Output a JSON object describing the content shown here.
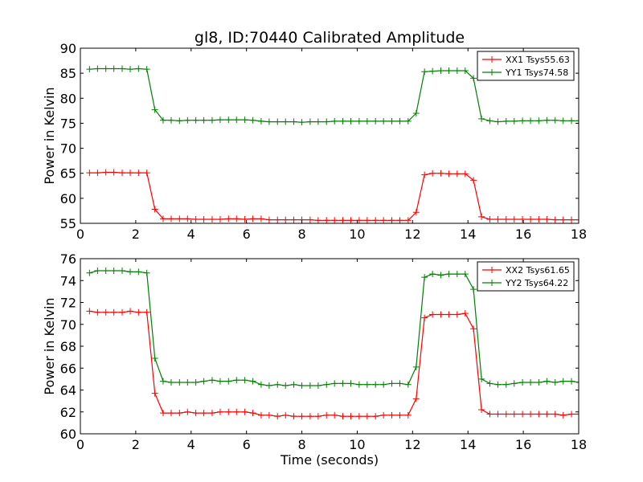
{
  "title": "gl8, ID:70440 Calibrated Amplitude",
  "colors": {
    "XX": "#ff0000",
    "YY": "#008000"
  },
  "chart_data": [
    {
      "type": "line",
      "title": "gl8, ID:70440 Calibrated Amplitude",
      "xlabel": "",
      "ylabel": "Power in Kelvin",
      "xlim": [
        0,
        18
      ],
      "ylim": [
        55,
        90
      ],
      "xticks": [
        0,
        2,
        4,
        6,
        8,
        10,
        12,
        14,
        16,
        18
      ],
      "yticks": [
        55,
        60,
        65,
        70,
        75,
        80,
        85,
        90
      ],
      "grid": false,
      "legend_position": "top-right",
      "x": [
        0.33,
        0.62,
        0.92,
        1.21,
        1.51,
        1.8,
        2.1,
        2.4,
        2.69,
        2.99,
        3.28,
        3.58,
        3.87,
        4.17,
        4.46,
        4.76,
        5.05,
        5.35,
        5.64,
        5.94,
        6.23,
        6.53,
        6.82,
        7.12,
        7.41,
        7.71,
        8.0,
        8.3,
        8.59,
        8.89,
        9.18,
        9.48,
        9.77,
        10.07,
        10.36,
        10.66,
        10.95,
        11.25,
        11.54,
        11.84,
        12.13,
        12.43,
        12.72,
        13.02,
        13.31,
        13.61,
        13.9,
        14.2,
        14.49,
        14.79,
        15.08,
        15.38,
        15.67,
        15.97,
        16.26,
        16.56,
        16.85,
        17.15,
        17.44,
        17.74,
        18.03
      ],
      "series": [
        {
          "name": "XX1 Tsys55.63",
          "color": "#ff0000",
          "values": [
            65.1,
            65.1,
            65.2,
            65.2,
            65.1,
            65.1,
            65.1,
            65.1,
            57.8,
            55.9,
            55.9,
            55.9,
            55.9,
            55.8,
            55.8,
            55.8,
            55.8,
            55.9,
            55.9,
            55.8,
            55.9,
            55.9,
            55.7,
            55.7,
            55.7,
            55.7,
            55.7,
            55.7,
            55.6,
            55.6,
            55.6,
            55.6,
            55.6,
            55.6,
            55.6,
            55.6,
            55.6,
            55.6,
            55.6,
            55.6,
            57.2,
            64.7,
            65.0,
            65.0,
            64.9,
            64.9,
            64.9,
            63.6,
            56.3,
            55.8,
            55.8,
            55.8,
            55.8,
            55.8,
            55.8,
            55.8,
            55.8,
            55.7,
            55.7,
            55.7,
            55.7
          ]
        },
        {
          "name": "YY1 Tsys74.58",
          "color": "#008000",
          "values": [
            85.8,
            85.9,
            85.9,
            85.9,
            85.9,
            85.8,
            85.9,
            85.8,
            77.7,
            75.6,
            75.6,
            75.5,
            75.6,
            75.6,
            75.6,
            75.6,
            75.7,
            75.7,
            75.7,
            75.7,
            75.6,
            75.4,
            75.3,
            75.3,
            75.3,
            75.3,
            75.2,
            75.3,
            75.3,
            75.3,
            75.4,
            75.4,
            75.4,
            75.4,
            75.4,
            75.4,
            75.4,
            75.4,
            75.4,
            75.4,
            77.0,
            85.3,
            85.4,
            85.5,
            85.5,
            85.5,
            85.5,
            84.0,
            75.9,
            75.5,
            75.3,
            75.4,
            75.4,
            75.5,
            75.5,
            75.5,
            75.6,
            75.6,
            75.5,
            75.5,
            75.5
          ]
        }
      ]
    },
    {
      "type": "line",
      "title": "",
      "xlabel": "Time (seconds)",
      "ylabel": "Power in Kelvin",
      "xlim": [
        0,
        18
      ],
      "ylim": [
        60,
        76
      ],
      "xticks": [
        0,
        2,
        4,
        6,
        8,
        10,
        12,
        14,
        16,
        18
      ],
      "yticks": [
        60,
        62,
        64,
        66,
        68,
        70,
        72,
        74,
        76
      ],
      "grid": false,
      "legend_position": "top-right",
      "x": [
        0.33,
        0.62,
        0.92,
        1.21,
        1.51,
        1.8,
        2.1,
        2.4,
        2.69,
        2.99,
        3.28,
        3.58,
        3.87,
        4.17,
        4.46,
        4.76,
        5.05,
        5.35,
        5.64,
        5.94,
        6.23,
        6.53,
        6.82,
        7.12,
        7.41,
        7.71,
        8.0,
        8.3,
        8.59,
        8.89,
        9.18,
        9.48,
        9.77,
        10.07,
        10.36,
        10.66,
        10.95,
        11.25,
        11.54,
        11.84,
        12.13,
        12.43,
        12.72,
        13.02,
        13.31,
        13.61,
        13.9,
        14.2,
        14.49,
        14.79,
        15.08,
        15.38,
        15.67,
        15.97,
        16.26,
        16.56,
        16.85,
        17.15,
        17.44,
        17.74,
        18.03
      ],
      "series": [
        {
          "name": "XX2 Tsys61.65",
          "color": "#ff0000",
          "values": [
            71.2,
            71.1,
            71.1,
            71.1,
            71.1,
            71.2,
            71.1,
            71.1,
            63.7,
            61.9,
            61.9,
            61.9,
            62.0,
            61.9,
            61.9,
            61.9,
            62.0,
            62.0,
            62.0,
            62.0,
            61.9,
            61.7,
            61.7,
            61.6,
            61.7,
            61.6,
            61.6,
            61.6,
            61.6,
            61.7,
            61.7,
            61.6,
            61.6,
            61.6,
            61.6,
            61.6,
            61.7,
            61.7,
            61.7,
            61.7,
            63.2,
            70.6,
            70.9,
            70.9,
            70.9,
            70.9,
            71.0,
            69.6,
            62.2,
            61.8,
            61.8,
            61.8,
            61.8,
            61.8,
            61.8,
            61.8,
            61.8,
            61.8,
            61.7,
            61.8,
            61.8
          ]
        },
        {
          "name": "YY2 Tsys64.22",
          "color": "#008000",
          "values": [
            74.7,
            74.9,
            74.9,
            74.9,
            74.9,
            74.8,
            74.8,
            74.7,
            66.9,
            64.8,
            64.7,
            64.7,
            64.7,
            64.7,
            64.8,
            64.9,
            64.8,
            64.8,
            64.9,
            64.9,
            64.8,
            64.5,
            64.4,
            64.5,
            64.4,
            64.5,
            64.4,
            64.4,
            64.4,
            64.5,
            64.6,
            64.6,
            64.6,
            64.5,
            64.5,
            64.5,
            64.5,
            64.6,
            64.6,
            64.5,
            66.1,
            74.3,
            74.6,
            74.5,
            74.6,
            74.6,
            74.6,
            73.2,
            65.0,
            64.6,
            64.5,
            64.5,
            64.6,
            64.7,
            64.7,
            64.7,
            64.8,
            64.7,
            64.8,
            64.8,
            64.7
          ]
        }
      ]
    }
  ]
}
